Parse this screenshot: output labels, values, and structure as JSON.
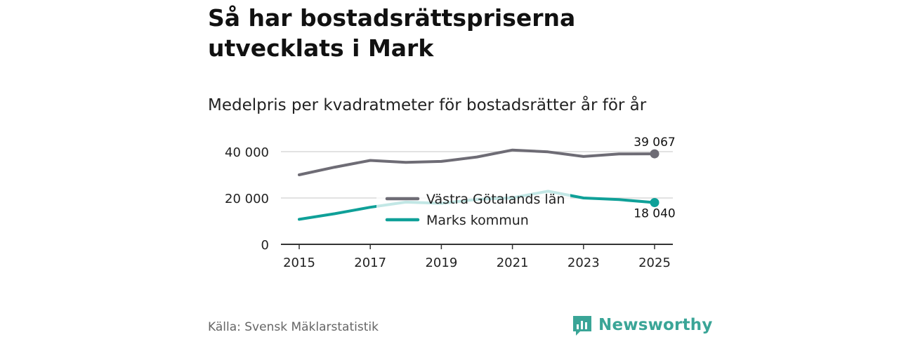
{
  "title": "Så har bostadsrättspriserna utvecklats i Mark",
  "subtitle": "Medelpris per kvadratmeter för bostadsrätter år för år",
  "source": "Källa: Svensk Mäklarstatistik",
  "brand": "Newsworthy",
  "colors": {
    "series1": "#6e6c75",
    "series2": "#0fa098",
    "brand": "#3aa597",
    "grid": "#d9d9d9",
    "axis": "#333333"
  },
  "chart_data": {
    "type": "line",
    "title": "Så har bostadsrättspriserna utvecklats i Mark",
    "subtitle": "Medelpris per kvadratmeter för bostadsrätter år för år",
    "xlabel": "",
    "ylabel": "",
    "x": [
      2015,
      2016,
      2017,
      2018,
      2019,
      2020,
      2021,
      2022,
      2023,
      2024,
      2025
    ],
    "x_ticks": [
      "2015",
      "2017",
      "2019",
      "2021",
      "2023",
      "2025"
    ],
    "y_ticks": [
      "0",
      "20 000",
      "40 000"
    ],
    "y_tick_values": [
      0,
      20000,
      40000
    ],
    "ylim": [
      0,
      40000
    ],
    "grid": true,
    "legend_position": "center",
    "series": [
      {
        "name": "Västra Götalands län",
        "color": "#6e6c75",
        "values": [
          30000,
          33300,
          36200,
          35400,
          35800,
          37700,
          40700,
          39900,
          37900,
          39000,
          39067
        ],
        "end_label": "39 067"
      },
      {
        "name": "Marks kommun",
        "color": "#0fa098",
        "values": [
          10800,
          13200,
          16000,
          18200,
          17700,
          19400,
          20100,
          22900,
          20000,
          19300,
          18040
        ],
        "end_label": "18 040"
      }
    ]
  }
}
